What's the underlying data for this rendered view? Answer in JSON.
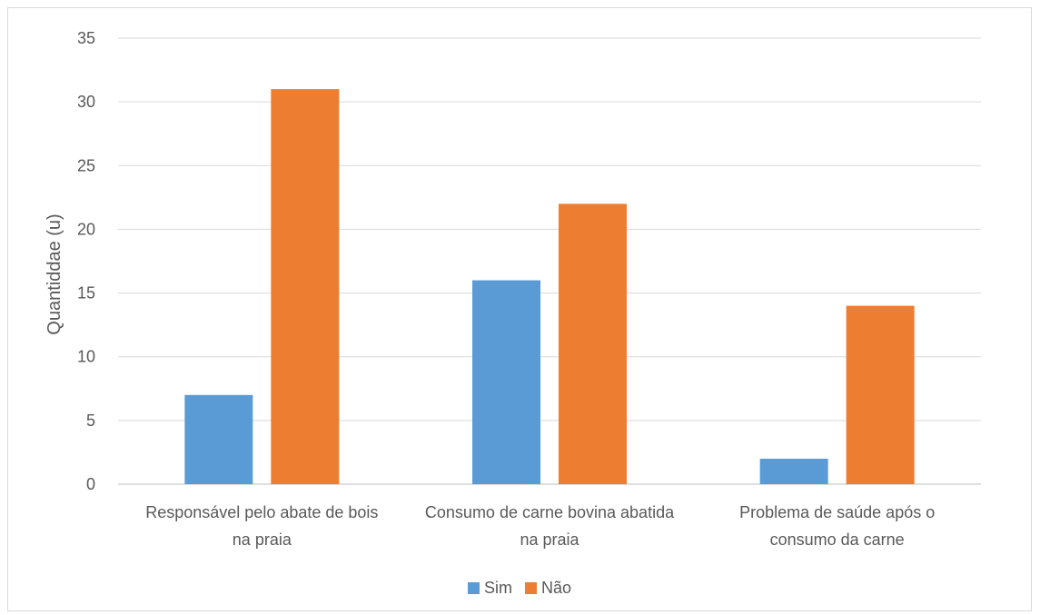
{
  "chart_data": {
    "type": "bar",
    "title": "",
    "xlabel": "",
    "ylabel": "Quantiddae (u)",
    "ylim": [
      0,
      35
    ],
    "yticks": [
      0,
      5,
      10,
      15,
      20,
      25,
      30,
      35
    ],
    "grid": true,
    "legend_position": "bottom",
    "categories": [
      [
        "Responsável pelo abate de bois",
        "na praia"
      ],
      [
        "Consumo de carne bovina abatida",
        "na praia"
      ],
      [
        "Problema de saúde após o",
        "consumo da carne"
      ]
    ],
    "series": [
      {
        "name": "Sim",
        "color": "#5b9bd5",
        "values": [
          7,
          16,
          2
        ]
      },
      {
        "name": "Não",
        "color": "#ed7d31",
        "values": [
          31,
          22,
          14
        ]
      }
    ]
  }
}
